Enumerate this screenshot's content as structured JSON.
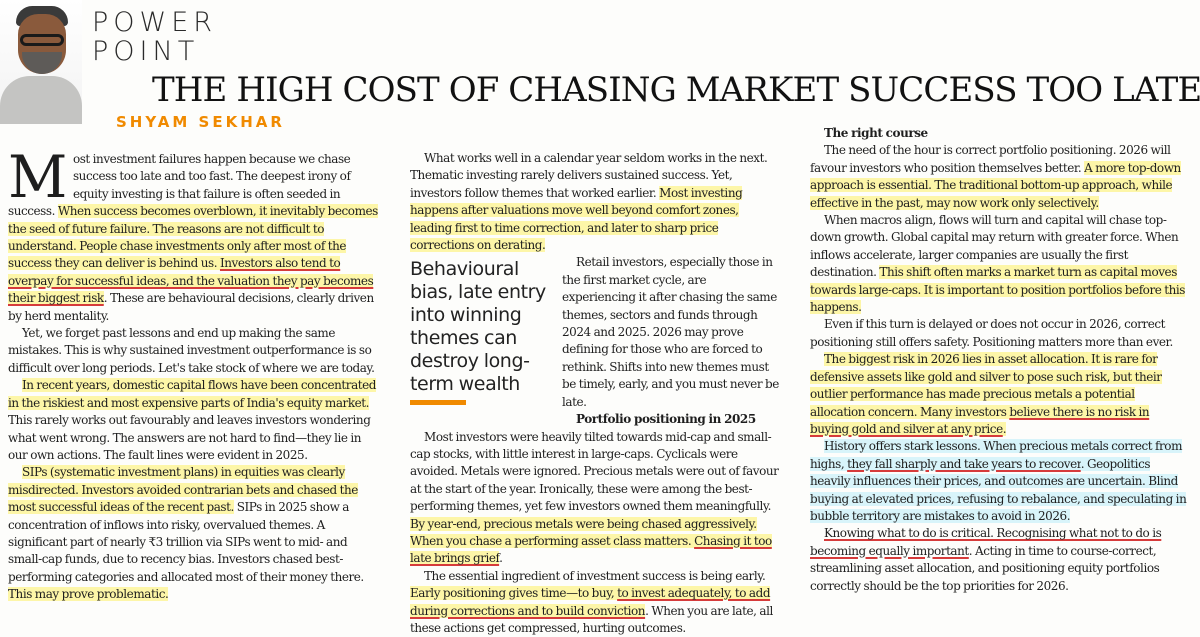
{
  "header": {
    "kicker_line1": "POWER",
    "kicker_line2": "POINT",
    "headline": "THE HIGH COST OF CHASING MARKET SUCCESS TOO LATE",
    "byline": "SHYAM SEKHAR"
  },
  "colors": {
    "byline": "#f08a00",
    "highlight_yellow": "#fdf6a8",
    "highlight_blue": "#d8f4fa",
    "underline_red": "#d63b3b"
  },
  "pullquote": "Behavioural bias, late entry into winning themes can destroy long-term wealth",
  "col1": {
    "p1_dropcap": "M",
    "p1_a": "ost investment failures happen because we chase success too late and too fast. The deepest irony of equity investing is that failure is often seeded in success. ",
    "p1_b": "When success becomes overblown, it inevitably becomes the seed of future failure. The reasons are not difficult to understand. People chase investments only after most of the success they can deliver is behind us. ",
    "p1_c": "Investors also tend to overpay for successful ideas, and the valuation they pay becomes their biggest risk",
    "p1_d": ". These are behavioural decisions, clearly driven by herd mentality.",
    "p2": "Yet, we forget past lessons and end up making the same mistakes. This is why sustained investment outperformance is so difficult over long periods. Let's take stock of where we are today.",
    "p3_a": "In recent years, domestic capital flows have been concentrated in the riskiest and most expensive parts of India's equity market.",
    "p3_b": " This rarely works out favourably and leaves investors wondering what went wrong. The answers are not hard to find—they lie in our own actions. The fault lines were evident in 2025.",
    "p4_a": "SIPs (systematic investment plans) in equities was clearly misdirected. Investors avoided contrarian bets and chased the most successful ideas of the recent past.",
    "p4_b": " SIPs in 2025 show a concentration of inflows into risky, overvalued themes. A significant part of nearly ₹3 trillion via SIPs went to mid- and small-cap funds, due to recency bias. Investors chased best-performing categories and allocated most of their money there. ",
    "p4_c": "This may prove problematic."
  },
  "col2": {
    "p1_a": "What works well in a calendar year seldom works in the next. Thematic investing rarely delivers sustained success. Yet, investors follow themes that worked earlier. ",
    "p1_b": "Most investing happens after valuations move well beyond comfort zones, leading first to time correction, and later to sharp price corrections on derating.",
    "p2": "Retail investors, especially those in the first market cycle, are experiencing it after chasing the same themes, sectors and funds through 2024 and 2025. 2026 may prove defining for those who are forced to rethink. Shifts into new themes must be timely, early, and you must never be late.",
    "sub": "Portfolio positioning in 2025",
    "p3_a": "Most investors were heavily tilted towards mid-cap and small-cap stocks, with little interest in large-caps. Cyclicals were avoided. Metals were ignored. Precious metals were out of favour at the start of the year. Ironically, these were among the best-performing themes, yet few investors owned them meaningfully. ",
    "p3_b": "By year-end, precious metals were being chased aggressively. When you chase a performing asset class matters. ",
    "p3_c": "Chasing it too late brings grief",
    "p3_d": ".",
    "p4_a": "The essential ingredient of investment success is being early. ",
    "p4_b": "Early positioning gives time—to buy, ",
    "p4_c": "to invest adequately, to add during corrections and to build conviction",
    "p4_d": ". When you are late, all these actions get compressed, hurting outcomes."
  },
  "col3": {
    "sub": "The right course",
    "p1_a": "The need of the hour is correct portfolio positioning. 2026 will favour investors who position themselves better. ",
    "p1_b": "A more top-down approach is essential. The traditional bottom-up approach, while effective in the past, may now work only selectively.",
    "p2_a": "When macros align, flows will turn and capital will chase top-down growth. Global capital may return with greater force. When inflows accelerate, larger companies are usually the first destination. ",
    "p2_b": "This shift often marks a market turn as capital moves towards large-caps. It is important to position portfolios before this happens.",
    "p3": "Even if this turn is delayed or does not occur in 2026, correct positioning still offers safety. Positioning matters more than ever.",
    "p4_a": "The biggest risk in 2026 lies in asset allocation. It is rare for defensive assets like gold and silver to pose such risk, but their outlier performance has made precious metals a potential allocation concern. Many investors ",
    "p4_b": "believe there is no risk in buying gold and silver at any price",
    "p4_c": ".",
    "p5_a": "History offers stark lessons. When precious metals correct from highs, ",
    "p5_b": "they fall sharply and take years to recover",
    "p5_c": ". Geopolitics heavily influences their prices, and outcomes are uncertain. Blind buying at elevated prices, refusing to rebalance, and speculating in bubble territory are mistakes to avoid in 2026.",
    "p6_a": "Knowing what to do is critical. Recognising what not to do is becoming equally important",
    "p6_b": ". Acting in time to course-correct, streamlining asset allocation, and positioning equity portfolios correctly should be the top priorities for 2026."
  }
}
